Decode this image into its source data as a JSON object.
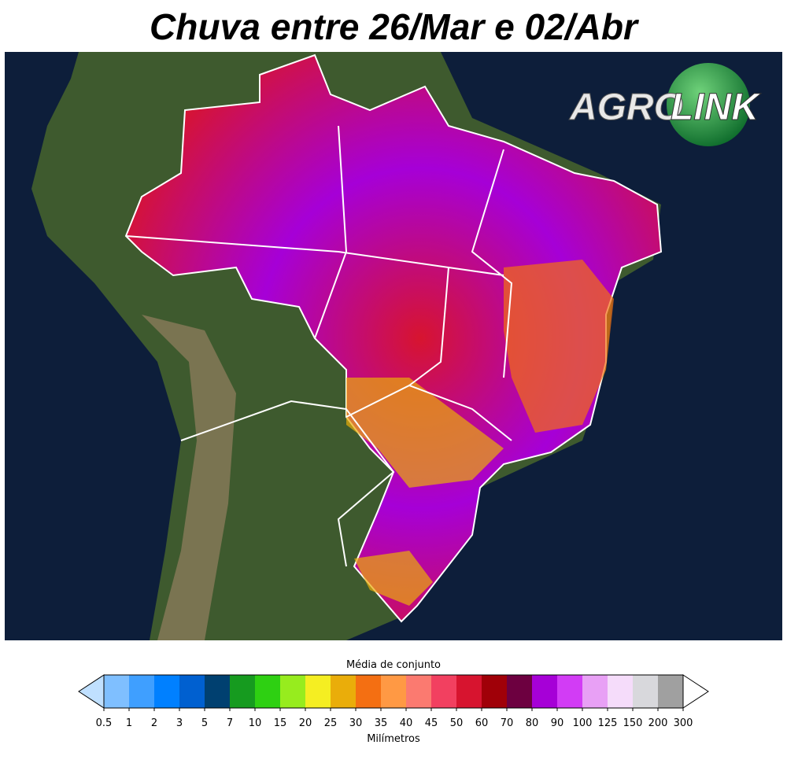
{
  "title": "Chuva entre 26/Mar e 02/Abr",
  "logo": {
    "left": "AGRO",
    "right": "LINK"
  },
  "colorbar": {
    "title": "Média de conjunto",
    "label": "Milímetros",
    "ticks": [
      0.5,
      1,
      2,
      3,
      5,
      7,
      10,
      15,
      20,
      25,
      30,
      35,
      40,
      45,
      50,
      60,
      70,
      80,
      90,
      100,
      125,
      150,
      200,
      300
    ],
    "colors": [
      "#7fbfff",
      "#3f9fff",
      "#0080ff",
      "#0060d0",
      "#004070",
      "#169b1f",
      "#2ed012",
      "#97ec1e",
      "#f5ee22",
      "#eaad0a",
      "#f46f12",
      "#ff9944",
      "#fb7a70",
      "#f24060",
      "#d7142f",
      "#a00008",
      "#6d0040",
      "#a600d7",
      "#d23cf5",
      "#e8a0f5",
      "#f5dcfa",
      "#d8d8dc",
      "#a0a0a0"
    ],
    "under_color": "#c0e0ff",
    "over_color": "#ffffff"
  }
}
